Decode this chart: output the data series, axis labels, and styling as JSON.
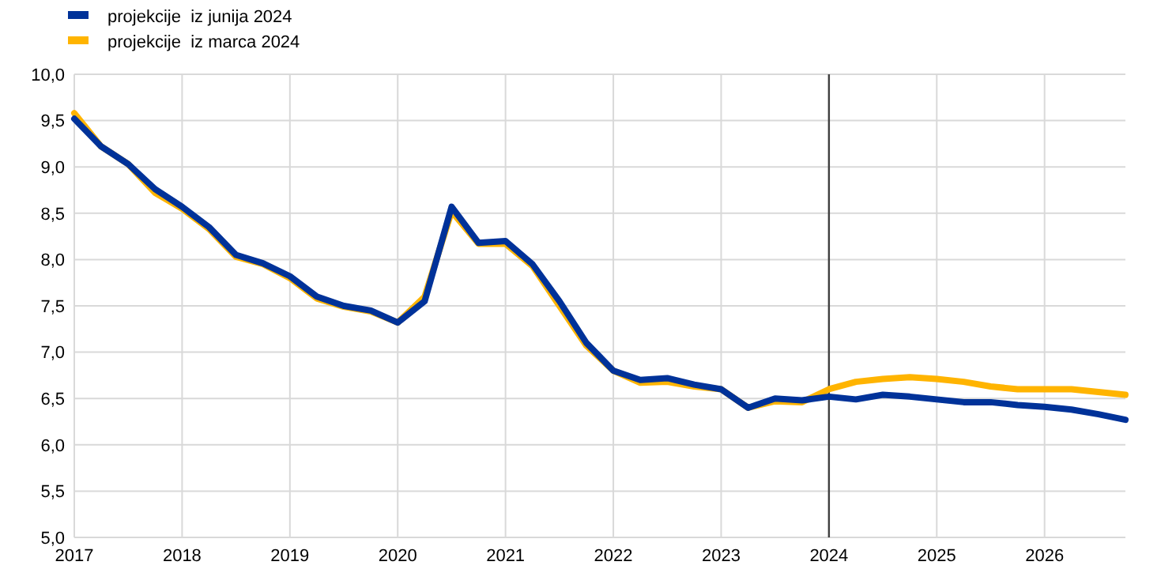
{
  "chart_data": {
    "type": "line",
    "x": [
      2017,
      2017.25,
      2017.5,
      2017.75,
      2018,
      2018.25,
      2018.5,
      2018.75,
      2019,
      2019.25,
      2019.5,
      2019.75,
      2020,
      2020.25,
      2020.5,
      2020.75,
      2021,
      2021.25,
      2021.5,
      2021.75,
      2022,
      2022.25,
      2022.5,
      2022.75,
      2023,
      2023.25,
      2023.5,
      2023.75,
      2024,
      2024.25,
      2024.5,
      2024.75,
      2025,
      2025.25,
      2025.5,
      2025.75,
      2026,
      2026.25,
      2026.5,
      2026.75
    ],
    "series": [
      {
        "name": "projekcije  iz junija 2024",
        "color": "#003299",
        "values": [
          9.52,
          9.22,
          9.03,
          8.76,
          8.57,
          8.35,
          8.05,
          7.96,
          7.82,
          7.6,
          7.5,
          7.45,
          7.32,
          7.55,
          8.57,
          8.18,
          8.2,
          7.95,
          7.55,
          7.1,
          6.8,
          6.7,
          6.72,
          6.65,
          6.6,
          6.4,
          6.5,
          6.48,
          6.52,
          6.49,
          6.54,
          6.52,
          6.49,
          6.46,
          6.46,
          6.43,
          6.41,
          6.38,
          6.33,
          6.27
        ]
      },
      {
        "name": "projekcije  iz marca 2024",
        "color": "#ffb400",
        "values": [
          9.58,
          9.22,
          9.03,
          8.72,
          8.55,
          8.33,
          8.03,
          7.95,
          7.8,
          7.58,
          7.49,
          7.44,
          7.32,
          7.6,
          8.52,
          8.17,
          8.17,
          7.93,
          7.5,
          7.07,
          6.8,
          6.67,
          6.68,
          6.63,
          6.6,
          6.4,
          6.47,
          6.46,
          6.6,
          6.68,
          6.71,
          6.73,
          6.71,
          6.68,
          6.63,
          6.6,
          6.6,
          6.6,
          6.57,
          6.54
        ]
      }
    ],
    "xlim": [
      2017,
      2026.75
    ],
    "xticks": [
      2017,
      2018,
      2019,
      2020,
      2021,
      2022,
      2023,
      2024,
      2025,
      2026
    ],
    "ylim": [
      5,
      10
    ],
    "yticks": [
      {
        "value": 5,
        "label": "5,0"
      },
      {
        "value": 5.5,
        "label": "5,5"
      },
      {
        "value": 6,
        "label": "6,0"
      },
      {
        "value": 6.5,
        "label": "6,5"
      },
      {
        "value": 7,
        "label": "7,0"
      },
      {
        "value": 7.5,
        "label": "7,5"
      },
      {
        "value": 8,
        "label": "8,0"
      },
      {
        "value": 8.5,
        "label": "8,5"
      },
      {
        "value": 9,
        "label": "9,0"
      },
      {
        "value": 9.5,
        "label": "9,5"
      },
      {
        "value": 10,
        "label": "10,0"
      }
    ],
    "ref_lines": [
      {
        "axis": "x",
        "value": 2024,
        "color": "#404040"
      }
    ],
    "grid": true,
    "legend": "top left",
    "line_style": "solid"
  }
}
